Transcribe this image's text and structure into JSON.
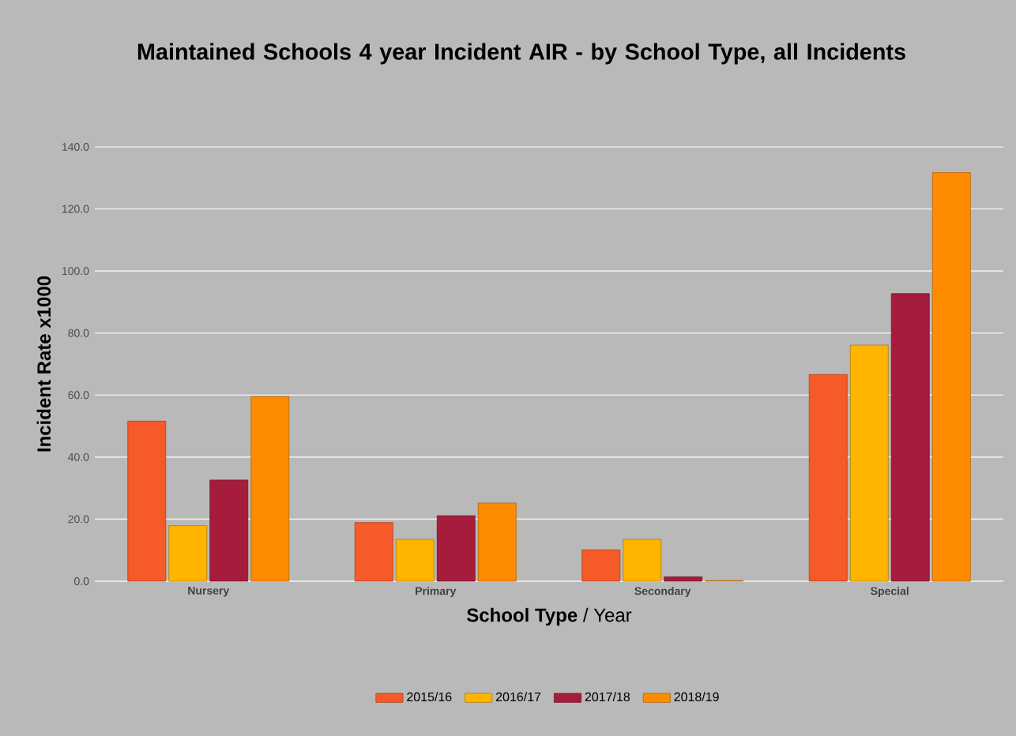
{
  "chart_data": {
    "type": "bar",
    "title": "Maintained Schools 4 year Incident AIR - by School Type, all Incidents",
    "xlabel": "**School Type** / Year",
    "ylabel": "Incident Rate x1000",
    "categories": [
      "Nursery",
      "Primary",
      "Secondary",
      "Special"
    ],
    "series": [
      {
        "name": "2015/16",
        "color": "#f55a28",
        "values": [
          51.6,
          18.9,
          10.1,
          66.6
        ]
      },
      {
        "name": "2016/17",
        "color": "#ffb400",
        "values": [
          17.9,
          13.5,
          13.5,
          76.1
        ]
      },
      {
        "name": "2017/18",
        "color": "#a61c3c",
        "values": [
          32.6,
          21.1,
          1.4,
          92.7
        ]
      },
      {
        "name": "2018/19",
        "color": "#ff8c00",
        "values": [
          59.5,
          25.2,
          0.2,
          131.7
        ]
      }
    ],
    "ylim": [
      0,
      140
    ],
    "yticks": [
      {
        "value": 0,
        "label": "0.0"
      },
      {
        "value": 20,
        "label": "20.0"
      },
      {
        "value": 40,
        "label": "40.0"
      },
      {
        "value": 60,
        "label": "60.0"
      },
      {
        "value": 80,
        "label": "80.0"
      },
      {
        "value": 100,
        "label": "100.0"
      },
      {
        "value": 120,
        "label": "120.0"
      },
      {
        "value": 140,
        "label": "140.0"
      }
    ],
    "grid": "y",
    "legend": "bottom"
  }
}
